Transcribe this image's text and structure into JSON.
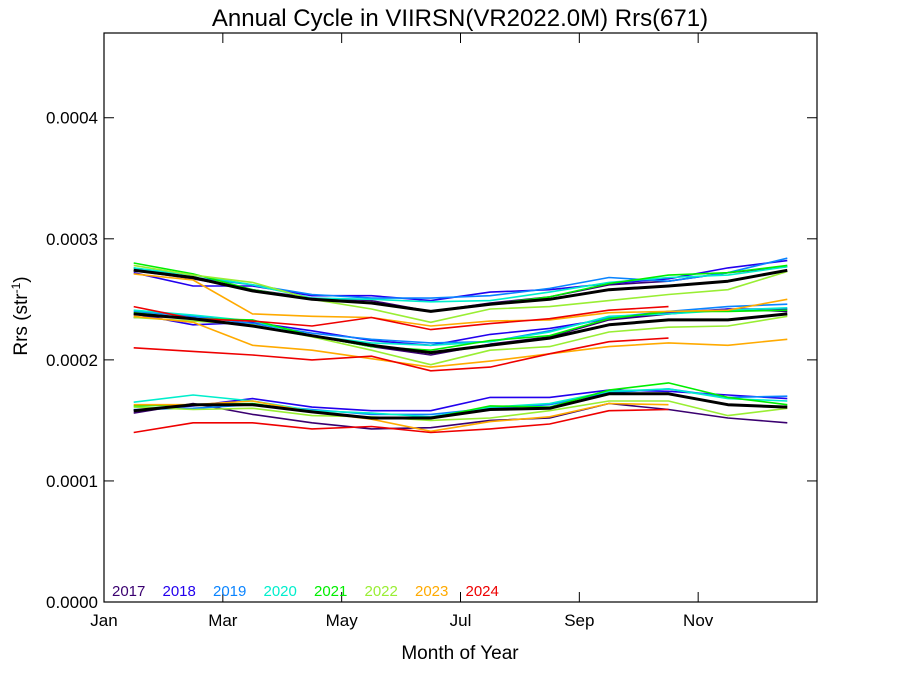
{
  "chart_data": {
    "type": "line",
    "title": "Annual Cycle in VIIRSN(VR2022.0M) Rrs(671)",
    "xlabel": "Month of Year",
    "ylabel_main": "Rrs (str",
    "ylabel_sup": "-1",
    "ylabel_close": ")",
    "xlim": [
      0,
      12
    ],
    "ylim": [
      0,
      0.00047
    ],
    "x_ticks": [
      {
        "value": 0,
        "label": "Jan"
      },
      {
        "value": 2,
        "label": "Mar"
      },
      {
        "value": 4,
        "label": "May"
      },
      {
        "value": 6,
        "label": "Jul"
      },
      {
        "value": 8,
        "label": "Sep"
      },
      {
        "value": 10,
        "label": "Nov"
      }
    ],
    "y_ticks": [
      {
        "value": 0,
        "label": "0.0000"
      },
      {
        "value": 0.0001,
        "label": "0.0001"
      },
      {
        "value": 0.0002,
        "label": "0.0002"
      },
      {
        "value": 0.0003,
        "label": "0.0003"
      },
      {
        "value": 0.0004,
        "label": "0.0004"
      }
    ],
    "grid": false,
    "legend_position": "bottom-left",
    "x": [
      0.5,
      1.5,
      2.5,
      3.5,
      4.5,
      5.5,
      6.5,
      7.5,
      8.5,
      9.5,
      10.5,
      11.5
    ],
    "series": [
      {
        "name": "2017",
        "color": "#3a0070",
        "groups": [
          [
            0.000274,
            0.000267,
            0.000258,
            0.000251,
            0.000249,
            0.00024,
            0.000247,
            0.000252,
            0.000262,
            0.000265,
            0.000272,
            0.000277
          ],
          [
            0.000235,
            0.000236,
            0.000232,
            0.00022,
            0.000211,
            0.000204,
            0.000213,
            0.000219,
            0.000233,
            0.000238,
            0.000242,
            0.00024
          ],
          [
            0.000156,
            0.000164,
            0.000155,
            0.000148,
            0.000143,
            0.000144,
            0.00015,
            0.000152,
            0.000164,
            0.000159,
            0.000152,
            0.000148
          ]
        ]
      },
      {
        "name": "2018",
        "color": "#2200ee",
        "groups": [
          [
            0.000272,
            0.000261,
            0.000261,
            0.000253,
            0.000253,
            0.000249,
            0.000256,
            0.000258,
            0.000263,
            0.000267,
            0.000276,
            0.000282
          ],
          [
            0.000238,
            0.000229,
            0.000231,
            0.000224,
            0.000216,
            0.000212,
            0.000221,
            0.000226,
            0.000234,
            0.000239,
            0.000242,
            0.000242
          ],
          [
            0.000158,
            0.000162,
            0.000168,
            0.000161,
            0.000158,
            0.000158,
            0.000169,
            0.000169,
            0.000175,
            0.000174,
            0.000171,
            0.000168
          ]
        ]
      },
      {
        "name": "2019",
        "color": "#0a84ff",
        "groups": [
          [
            0.000276,
            0.000268,
            0.000262,
            0.000254,
            0.000251,
            0.000251,
            0.000253,
            0.000259,
            0.000268,
            0.000265,
            0.000272,
            0.000284
          ],
          [
            0.00024,
            0.000236,
            0.00023,
            0.000222,
            0.000217,
            0.000214,
            0.000215,
            0.000224,
            0.000235,
            0.00024,
            0.000244,
            0.000246
          ],
          [
            0.000159,
            0.00016,
            0.000163,
            0.000159,
            0.000155,
            0.000155,
            0.00016,
            0.000163,
            0.000173,
            0.000176,
            0.000169,
            0.00017
          ]
        ]
      },
      {
        "name": "2020",
        "color": "#00eecc",
        "groups": [
          [
            0.000276,
            0.00027,
            0.000262,
            0.000251,
            0.00025,
            0.000248,
            0.000249,
            0.000256,
            0.000264,
            0.000268,
            0.00027,
            0.000277
          ],
          [
            0.000241,
            0.000237,
            0.000232,
            0.00022,
            0.000214,
            0.000212,
            0.000215,
            0.000223,
            0.000236,
            0.000238,
            0.000241,
            0.000243
          ],
          [
            0.000165,
            0.000171,
            0.000166,
            0.000158,
            0.000156,
            0.000153,
            0.000161,
            0.000164,
            0.000174,
            0.000176,
            0.000168,
            0.000166
          ]
        ]
      },
      {
        "name": "2021",
        "color": "#00ee00",
        "groups": [
          [
            0.00028,
            0.000271,
            0.000258,
            0.00025,
            0.000247,
            0.00024,
            0.000246,
            0.000252,
            0.000263,
            0.00027,
            0.000272,
            0.000278
          ],
          [
            0.000239,
            0.000234,
            0.000233,
            0.00022,
            0.000211,
            0.000208,
            0.000216,
            0.00022,
            0.000234,
            0.00024,
            0.00024,
            0.000241
          ],
          [
            0.000162,
            0.000163,
            0.000164,
            0.000157,
            0.000152,
            0.000152,
            0.000162,
            0.000161,
            0.000175,
            0.000181,
            0.000169,
            0.000163
          ]
        ]
      },
      {
        "name": "2022",
        "color": "#99ee33",
        "groups": [
          [
            0.000278,
            0.00027,
            0.000264,
            0.00025,
            0.000242,
            0.000231,
            0.000242,
            0.000244,
            0.000249,
            0.000254,
            0.000258,
            0.000273
          ],
          [
            0.000235,
            0.000232,
            0.000229,
            0.000219,
            0.000208,
            0.000196,
            0.000208,
            0.000211,
            0.000223,
            0.000227,
            0.000228,
            0.000236
          ],
          [
            0.000161,
            0.000159,
            0.00016,
            0.000154,
            0.000153,
            0.00015,
            0.000152,
            0.000158,
            0.000166,
            0.000166,
            0.000154,
            0.00016
          ]
        ]
      },
      {
        "name": "2023",
        "color": "#ffaa00",
        "groups": [
          [
            0.000271,
            0.000266,
            0.000238,
            0.000236,
            0.000235,
            0.000228,
            0.000232,
            0.000233,
            0.000239,
            0.00024,
            0.000241,
            0.00025
          ],
          [
            0.000236,
            0.000231,
            0.000212,
            0.000208,
            0.000201,
            0.000194,
            0.000199,
            0.000205,
            0.000211,
            0.000214,
            0.000212,
            0.000217
          ],
          [
            0.000163,
            0.000163,
            0.000166,
            0.000157,
            0.000151,
            0.000141,
            0.000149,
            0.000153,
            0.000164,
            0.000163,
            null,
            null
          ]
        ]
      },
      {
        "name": "2024",
        "color": "#ee0000",
        "groups": [
          [
            0.000244,
            0.000234,
            0.000232,
            0.000228,
            0.000235,
            0.000225,
            0.00023,
            0.000234,
            0.000241,
            0.000244,
            null,
            null
          ],
          [
            0.00021,
            0.000207,
            0.000204,
            0.0002,
            0.000203,
            0.000191,
            0.000194,
            0.000205,
            0.000215,
            0.000218,
            null,
            null
          ],
          [
            0.00014,
            0.000148,
            0.000148,
            0.000143,
            0.000145,
            0.00014,
            0.000143,
            0.000147,
            0.000158,
            0.000159,
            null,
            null
          ]
        ]
      },
      {
        "color": "#000000",
        "groups": [
          [
            0.000274,
            0.000268,
            0.000257,
            0.00025,
            0.000247,
            0.00024,
            0.000246,
            0.00025,
            0.000258,
            0.000261,
            0.000265,
            0.000274
          ],
          [
            0.000238,
            0.000234,
            0.000228,
            0.00022,
            0.000212,
            0.000206,
            0.000212,
            0.000218,
            0.000229,
            0.000233,
            0.000233,
            0.000238
          ],
          [
            0.000158,
            0.000163,
            0.000163,
            0.000157,
            0.000152,
            0.000152,
            0.000159,
            0.00016,
            0.000172,
            0.000172,
            0.000163,
            0.000161
          ]
        ]
      }
    ]
  }
}
